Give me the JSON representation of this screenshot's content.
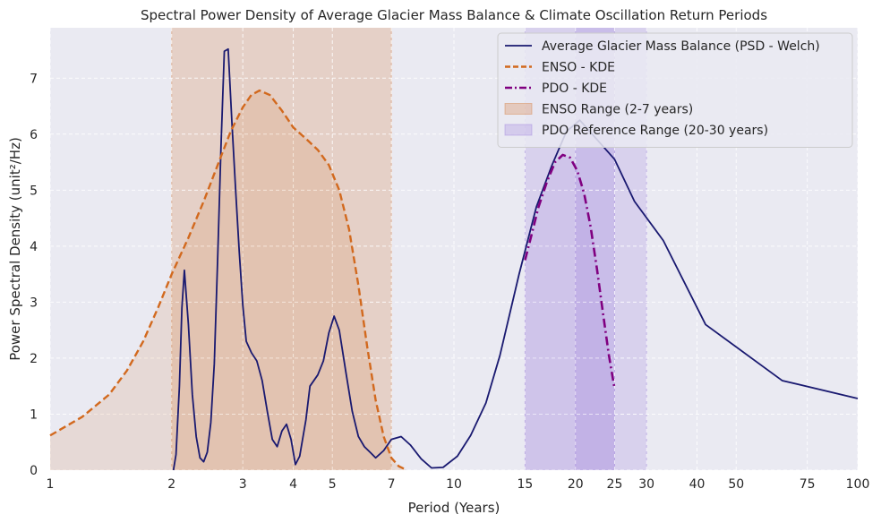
{
  "chart_data": {
    "type": "line",
    "title": "Spectral Power Density of Average Glacier Mass Balance & Climate Oscillation Return Periods",
    "xlabel": "Period (Years)",
    "ylabel": "Power Spectral Density (unit²/Hz)",
    "x_scale": "log",
    "xlim": [
      1,
      100
    ],
    "ylim": [
      0,
      7.9
    ],
    "x_ticks": [
      1,
      2,
      3,
      4,
      5,
      7,
      10,
      15,
      20,
      25,
      30,
      40,
      50,
      75,
      100
    ],
    "y_ticks": [
      0,
      1,
      2,
      3,
      4,
      5,
      6,
      7
    ],
    "grid": true,
    "legend_position": "top-right",
    "series": [
      {
        "name": "Average Glacier Mass Balance (PSD - Welch)",
        "style": "solid",
        "color": "#191970",
        "points": [
          [
            2.02,
            0.0
          ],
          [
            2.05,
            0.28
          ],
          [
            2.09,
            1.5
          ],
          [
            2.12,
            2.9
          ],
          [
            2.15,
            3.57
          ],
          [
            2.2,
            2.6
          ],
          [
            2.25,
            1.35
          ],
          [
            2.3,
            0.6
          ],
          [
            2.35,
            0.22
          ],
          [
            2.4,
            0.15
          ],
          [
            2.45,
            0.32
          ],
          [
            2.5,
            0.85
          ],
          [
            2.55,
            1.9
          ],
          [
            2.6,
            3.8
          ],
          [
            2.65,
            5.8
          ],
          [
            2.7,
            7.48
          ],
          [
            2.76,
            7.52
          ],
          [
            2.82,
            6.2
          ],
          [
            2.88,
            5.0
          ],
          [
            2.94,
            3.9
          ],
          [
            3.0,
            2.95
          ],
          [
            3.06,
            2.3
          ],
          [
            3.15,
            2.1
          ],
          [
            3.25,
            1.95
          ],
          [
            3.35,
            1.6
          ],
          [
            3.45,
            1.05
          ],
          [
            3.55,
            0.55
          ],
          [
            3.65,
            0.42
          ],
          [
            3.75,
            0.7
          ],
          [
            3.85,
            0.82
          ],
          [
            3.95,
            0.55
          ],
          [
            4.05,
            0.1
          ],
          [
            4.15,
            0.25
          ],
          [
            4.3,
            0.9
          ],
          [
            4.4,
            1.5
          ],
          [
            4.6,
            1.7
          ],
          [
            4.75,
            1.95
          ],
          [
            4.9,
            2.45
          ],
          [
            5.05,
            2.75
          ],
          [
            5.2,
            2.5
          ],
          [
            5.4,
            1.75
          ],
          [
            5.6,
            1.05
          ],
          [
            5.8,
            0.6
          ],
          [
            6.0,
            0.42
          ],
          [
            6.2,
            0.32
          ],
          [
            6.4,
            0.22
          ],
          [
            6.7,
            0.35
          ],
          [
            7.0,
            0.55
          ],
          [
            7.4,
            0.6
          ],
          [
            7.8,
            0.45
          ],
          [
            8.3,
            0.2
          ],
          [
            8.8,
            0.04
          ],
          [
            9.4,
            0.05
          ],
          [
            10.2,
            0.25
          ],
          [
            11.0,
            0.62
          ],
          [
            12.0,
            1.2
          ],
          [
            13.0,
            2.05
          ],
          [
            14.5,
            3.5
          ],
          [
            16.0,
            4.7
          ],
          [
            17.5,
            5.45
          ],
          [
            19.0,
            6.05
          ],
          [
            20.5,
            6.25
          ],
          [
            22.0,
            6.0
          ],
          [
            25.0,
            5.55
          ],
          [
            28.0,
            4.8
          ],
          [
            33.0,
            4.1
          ],
          [
            42.0,
            2.6
          ],
          [
            65.0,
            1.6
          ],
          [
            100.0,
            1.28
          ]
        ]
      },
      {
        "name": "ENSO - KDE",
        "style": "dashed",
        "color": "#d2691e",
        "points": [
          [
            1.0,
            0.62
          ],
          [
            1.2,
            0.95
          ],
          [
            1.4,
            1.35
          ],
          [
            1.55,
            1.78
          ],
          [
            1.7,
            2.3
          ],
          [
            1.85,
            2.9
          ],
          [
            2.0,
            3.5
          ],
          [
            2.2,
            4.15
          ],
          [
            2.4,
            4.8
          ],
          [
            2.6,
            5.45
          ],
          [
            2.8,
            6.05
          ],
          [
            3.0,
            6.48
          ],
          [
            3.15,
            6.7
          ],
          [
            3.3,
            6.78
          ],
          [
            3.5,
            6.7
          ],
          [
            3.75,
            6.42
          ],
          [
            4.0,
            6.12
          ],
          [
            4.3,
            5.92
          ],
          [
            4.6,
            5.72
          ],
          [
            4.9,
            5.45
          ],
          [
            5.2,
            5.0
          ],
          [
            5.5,
            4.3
          ],
          [
            5.8,
            3.3
          ],
          [
            6.1,
            2.2
          ],
          [
            6.4,
            1.25
          ],
          [
            6.7,
            0.6
          ],
          [
            7.0,
            0.22
          ],
          [
            7.3,
            0.07
          ],
          [
            7.6,
            0.01
          ]
        ]
      },
      {
        "name": "PDO - KDE",
        "style": "dashdot",
        "color": "#800080",
        "points": [
          [
            15.0,
            3.75
          ],
          [
            15.5,
            4.15
          ],
          [
            16.2,
            4.7
          ],
          [
            17.0,
            5.15
          ],
          [
            17.8,
            5.5
          ],
          [
            18.6,
            5.63
          ],
          [
            19.4,
            5.58
          ],
          [
            20.2,
            5.35
          ],
          [
            21.0,
            4.95
          ],
          [
            21.8,
            4.35
          ],
          [
            22.6,
            3.6
          ],
          [
            23.4,
            2.8
          ],
          [
            24.2,
            2.05
          ],
          [
            25.0,
            1.45
          ]
        ]
      }
    ],
    "bands": [
      {
        "name": "ENSO Range (2-7 years)",
        "x": [
          2,
          7
        ],
        "color": "#d2691e"
      },
      {
        "name": "PDO Reference Range (20-30 years)",
        "x": [
          20,
          30
        ],
        "color": "#9370db"
      },
      {
        "name": "",
        "x": [
          15,
          25
        ],
        "color": "#9370db"
      }
    ],
    "fills": [
      {
        "series": 1,
        "color": "#d2691e"
      },
      {
        "series": 2,
        "color": "#9370db"
      }
    ]
  }
}
